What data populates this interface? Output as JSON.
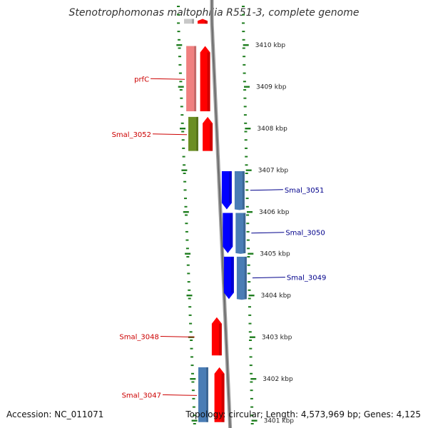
{
  "title": "Stenotrophomonas maltophilia R551-3, complete genome",
  "footer": {
    "accession": "Accession: NC_011071",
    "summary": "Topology: circular; Length: 4,573,969 bp; Genes: 4,125"
  },
  "colors": {
    "forward_cds": "#ff0000",
    "reverse_cds": "#0000ff",
    "forward_cog_a": "#f08080",
    "forward_cog_b": "#6b8e23",
    "reverse_cog": "#4a7db5",
    "ticks": "#1e7d1e",
    "backbone": "#888888",
    "forward_label": "#cc0000",
    "reverse_label": "#00008b"
  },
  "scale": {
    "unit": "kbp",
    "ticks": [
      {
        "kbp": 3410,
        "label": "3410 kbp"
      },
      {
        "kbp": 3409,
        "label": "3409 kbp"
      },
      {
        "kbp": 3408,
        "label": "3408 kbp"
      },
      {
        "kbp": 3407,
        "label": "3407 kbp"
      },
      {
        "kbp": 3406,
        "label": "3406 kbp"
      },
      {
        "kbp": 3405,
        "label": "3405 kbp"
      },
      {
        "kbp": 3404,
        "label": "3404 kbp"
      },
      {
        "kbp": 3403,
        "label": "3403 kbp"
      },
      {
        "kbp": 3402,
        "label": "3402 kbp"
      },
      {
        "kbp": 3401,
        "label": "3401 kbp"
      }
    ]
  },
  "genes": [
    {
      "label": "",
      "strand": "forward",
      "start_kbp": 3410.45,
      "end_kbp": 3410.65,
      "cog": "grey"
    },
    {
      "label": "prfC",
      "strand": "forward",
      "start_kbp": 3408.35,
      "end_kbp": 3410.0,
      "cog": "salmon"
    },
    {
      "label": "Smal_3052",
      "strand": "forward",
      "start_kbp": 3407.4,
      "end_kbp": 3408.3,
      "cog": "olive"
    },
    {
      "label": "Smal_3051",
      "strand": "reverse",
      "start_kbp": 3406.0,
      "end_kbp": 3407.0,
      "cog": "steelblue"
    },
    {
      "label": "Smal_3050",
      "strand": "reverse",
      "start_kbp": 3404.95,
      "end_kbp": 3406.0,
      "cog": "steelblue"
    },
    {
      "label": "Smal_3049",
      "strand": "reverse",
      "start_kbp": 3403.85,
      "end_kbp": 3404.95,
      "cog": "steelblue"
    },
    {
      "label": "Smal_3048",
      "strand": "forward",
      "start_kbp": 3402.5,
      "end_kbp": 3403.5,
      "cog": "none"
    },
    {
      "label": "Smal_3047",
      "strand": "forward",
      "start_kbp": 3400.9,
      "end_kbp": 3402.3,
      "cog": "steelblue"
    }
  ]
}
